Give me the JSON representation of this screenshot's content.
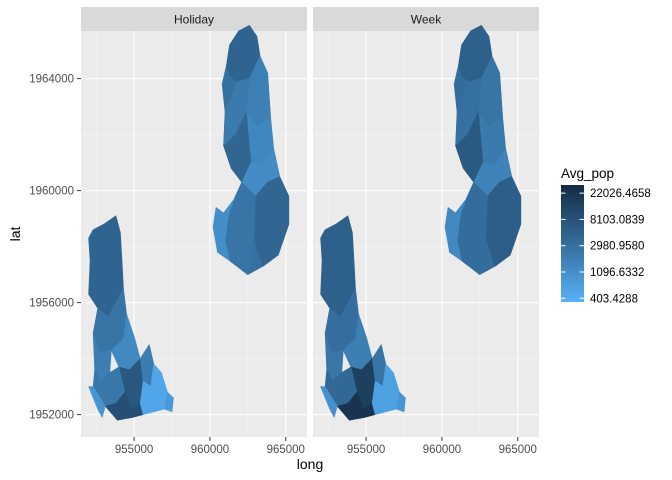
{
  "chart_data": {
    "type": "choropleth-map",
    "facets": [
      {
        "label": "Holiday"
      },
      {
        "label": "Week"
      }
    ],
    "xlabel": "long",
    "ylabel": "lat",
    "xlim": [
      951500,
      966400
    ],
    "ylim": [
      1951200,
      1965700
    ],
    "x_ticks": [
      955000,
      960000,
      965000
    ],
    "x_tick_labels": [
      "955000",
      "960000",
      "965000"
    ],
    "y_ticks": [
      1952000,
      1956000,
      1960000,
      1964000
    ],
    "y_tick_labels": [
      "1952000",
      "1956000",
      "1960000",
      "1964000"
    ],
    "panel_background": "#ebebeb",
    "strip_background": "#d9d9d9",
    "grid_color": "#ffffff",
    "legend": {
      "title": "Avg_pop",
      "position": "right",
      "scale": "log",
      "low_color": "#56b1f7",
      "high_color": "#132b43",
      "breaks": [
        {
          "value": 22026.4658,
          "label": "22026.4658"
        },
        {
          "value": 8103.0839,
          "label": "8103.0839"
        },
        {
          "value": 2980.958,
          "label": "2980.9580"
        },
        {
          "value": 1096.6332,
          "label": "1096.6332"
        },
        {
          "value": 403.4288,
          "label": "403.4288"
        }
      ],
      "range": [
        350,
        30000
      ]
    },
    "regions": [
      {
        "id": "north-cluster",
        "outline": [
          [
            962100,
            1960300
          ],
          [
            961600,
            1959700
          ],
          [
            960900,
            1959200
          ],
          [
            960600,
            1958200
          ],
          [
            960500,
            1957800
          ],
          [
            961300,
            1957500
          ],
          [
            962500,
            1957000
          ],
          [
            963500,
            1957300
          ],
          [
            964500,
            1957700
          ],
          [
            965200,
            1958800
          ],
          [
            965200,
            1959800
          ],
          [
            964600,
            1960500
          ],
          [
            964200,
            1961500
          ],
          [
            964000,
            1962600
          ],
          [
            963800,
            1964200
          ],
          [
            963300,
            1964800
          ],
          [
            963100,
            1965500
          ],
          [
            962600,
            1965900
          ],
          [
            961900,
            1965700
          ],
          [
            961300,
            1965200
          ],
          [
            961100,
            1964500
          ],
          [
            960800,
            1963800
          ],
          [
            961000,
            1962800
          ],
          [
            960900,
            1961600
          ],
          [
            961400,
            1960800
          ]
        ],
        "holiday": 3000,
        "week": 3400
      },
      {
        "id": "north-top",
        "outline": [
          [
            961100,
            1964500
          ],
          [
            961300,
            1965200
          ],
          [
            961900,
            1965700
          ],
          [
            962600,
            1965900
          ],
          [
            963100,
            1965500
          ],
          [
            963300,
            1964800
          ],
          [
            962600,
            1964000
          ],
          [
            961800,
            1963900
          ],
          [
            961300,
            1964100
          ]
        ],
        "holiday": 4500,
        "week": 5200
      },
      {
        "id": "north-east-mid",
        "outline": [
          [
            962600,
            1964000
          ],
          [
            963300,
            1964800
          ],
          [
            963800,
            1964200
          ],
          [
            964000,
            1962600
          ],
          [
            963100,
            1962300
          ],
          [
            962400,
            1962800
          ]
        ],
        "holiday": 1800,
        "week": 2600
      },
      {
        "id": "north-center",
        "outline": [
          [
            961000,
            1962800
          ],
          [
            961800,
            1963900
          ],
          [
            962600,
            1964000
          ],
          [
            962400,
            1962800
          ],
          [
            961700,
            1962000
          ],
          [
            960900,
            1961600
          ]
        ],
        "holiday": 2200,
        "week": 3000
      },
      {
        "id": "north-east-lower",
        "outline": [
          [
            962400,
            1962800
          ],
          [
            963100,
            1962300
          ],
          [
            964000,
            1962600
          ],
          [
            964200,
            1961500
          ],
          [
            963500,
            1960900
          ],
          [
            962700,
            1961000
          ]
        ],
        "holiday": 1400,
        "week": 2200
      },
      {
        "id": "north-narrow",
        "outline": [
          [
            960900,
            1961600
          ],
          [
            961700,
            1962000
          ],
          [
            962400,
            1962800
          ],
          [
            962700,
            1961000
          ],
          [
            962100,
            1960300
          ],
          [
            961400,
            1960800
          ]
        ],
        "holiday": 4200,
        "week": 6500
      },
      {
        "id": "north-waist",
        "outline": [
          [
            962100,
            1960300
          ],
          [
            962700,
            1961000
          ],
          [
            963500,
            1960900
          ],
          [
            964200,
            1961500
          ],
          [
            964600,
            1960500
          ],
          [
            963800,
            1960300
          ],
          [
            963000,
            1959800
          ]
        ],
        "holiday": 1200,
        "week": 1600
      },
      {
        "id": "north-southeast",
        "outline": [
          [
            963000,
            1959800
          ],
          [
            963800,
            1960300
          ],
          [
            964600,
            1960500
          ],
          [
            965200,
            1959800
          ],
          [
            965200,
            1958800
          ],
          [
            964500,
            1957700
          ],
          [
            963500,
            1957300
          ],
          [
            962900,
            1958300
          ]
        ],
        "holiday": 4200,
        "week": 5600
      },
      {
        "id": "north-south",
        "outline": [
          [
            961600,
            1959700
          ],
          [
            962100,
            1960300
          ],
          [
            963000,
            1959800
          ],
          [
            962900,
            1958300
          ],
          [
            962500,
            1957000
          ],
          [
            961300,
            1957500
          ],
          [
            961000,
            1958200
          ],
          [
            961200,
            1959100
          ]
        ],
        "holiday": 2600,
        "week": 3300
      },
      {
        "id": "north-west-lobe",
        "outline": [
          [
            960900,
            1959200
          ],
          [
            961600,
            1959700
          ],
          [
            961200,
            1959100
          ],
          [
            961000,
            1958200
          ],
          [
            961300,
            1957500
          ],
          [
            960500,
            1957800
          ],
          [
            960200,
            1958700
          ],
          [
            960400,
            1959400
          ]
        ],
        "holiday": 1100,
        "week": 1300
      },
      {
        "id": "south-main",
        "outline": [
          [
            952300,
            1958600
          ],
          [
            953000,
            1958800
          ],
          [
            953800,
            1959100
          ],
          [
            954100,
            1958500
          ],
          [
            954200,
            1957500
          ],
          [
            954300,
            1956500
          ],
          [
            953700,
            1955900
          ],
          [
            953300,
            1955500
          ],
          [
            952600,
            1955800
          ],
          [
            952000,
            1956300
          ],
          [
            952100,
            1957500
          ],
          [
            952000,
            1958300
          ]
        ],
        "holiday": 4500,
        "week": 5200
      },
      {
        "id": "south-mid",
        "outline": [
          [
            952600,
            1955800
          ],
          [
            953300,
            1955500
          ],
          [
            953700,
            1955900
          ],
          [
            954300,
            1956500
          ],
          [
            954500,
            1955600
          ],
          [
            954300,
            1954700
          ],
          [
            953500,
            1954300
          ],
          [
            952700,
            1954200
          ],
          [
            952300,
            1954900
          ]
        ],
        "holiday": 2600,
        "week": 3200
      },
      {
        "id": "south-west-mid",
        "outline": [
          [
            952300,
            1954900
          ],
          [
            952700,
            1954200
          ],
          [
            953500,
            1954300
          ],
          [
            953400,
            1953500
          ],
          [
            952800,
            1953200
          ],
          [
            952400,
            1953600
          ]
        ],
        "holiday": 1900,
        "week": 2400
      },
      {
        "id": "south-east-neck",
        "outline": [
          [
            953500,
            1954300
          ],
          [
            954300,
            1954700
          ],
          [
            954500,
            1955600
          ],
          [
            955000,
            1954800
          ],
          [
            955400,
            1954000
          ],
          [
            954700,
            1953600
          ],
          [
            954000,
            1953700
          ]
        ],
        "holiday": 1300,
        "week": 1900
      },
      {
        "id": "south-center-core",
        "outline": [
          [
            954000,
            1953700
          ],
          [
            954700,
            1953600
          ],
          [
            955400,
            1954000
          ],
          [
            955600,
            1953200
          ],
          [
            955400,
            1952400
          ],
          [
            954800,
            1952200
          ],
          [
            954400,
            1952800
          ]
        ],
        "holiday": 7000,
        "week": 15000
      },
      {
        "id": "south-west-lower",
        "outline": [
          [
            952800,
            1953200
          ],
          [
            953400,
            1953500
          ],
          [
            954000,
            1953700
          ],
          [
            954400,
            1952800
          ],
          [
            953800,
            1952400
          ],
          [
            953100,
            1952300
          ],
          [
            952300,
            1953000
          ],
          [
            952400,
            1953600
          ]
        ],
        "holiday": 2400,
        "week": 4000
      },
      {
        "id": "south-bottom",
        "outline": [
          [
            953100,
            1952300
          ],
          [
            953800,
            1952400
          ],
          [
            954400,
            1952800
          ],
          [
            954800,
            1952200
          ],
          [
            955400,
            1952400
          ],
          [
            955600,
            1952000
          ],
          [
            954900,
            1951900
          ],
          [
            953900,
            1951800
          ]
        ],
        "holiday": 9000,
        "week": 22000
      },
      {
        "id": "south-east-strip",
        "outline": [
          [
            955400,
            1954000
          ],
          [
            956000,
            1954500
          ],
          [
            956300,
            1953800
          ],
          [
            956100,
            1953000
          ],
          [
            955600,
            1953200
          ]
        ],
        "holiday": 2000,
        "week": 2600
      },
      {
        "id": "south-east-bright",
        "outline": [
          [
            956100,
            1953000
          ],
          [
            956300,
            1953800
          ],
          [
            956800,
            1953500
          ],
          [
            957200,
            1952800
          ],
          [
            957000,
            1952200
          ],
          [
            956300,
            1952100
          ],
          [
            955600,
            1952000
          ],
          [
            955400,
            1952400
          ],
          [
            955600,
            1953200
          ]
        ],
        "holiday": 500,
        "week": 600
      },
      {
        "id": "south-east-tip",
        "outline": [
          [
            957000,
            1952200
          ],
          [
            957200,
            1952800
          ],
          [
            957600,
            1952600
          ],
          [
            957500,
            1952100
          ]
        ],
        "holiday": 800,
        "week": 900
      },
      {
        "id": "south-west-tip",
        "outline": [
          [
            952300,
            1953000
          ],
          [
            953100,
            1952300
          ],
          [
            952900,
            1951900
          ],
          [
            952600,
            1952200
          ],
          [
            952000,
            1953000
          ]
        ],
        "holiday": 900,
        "week": 1000
      }
    ]
  }
}
